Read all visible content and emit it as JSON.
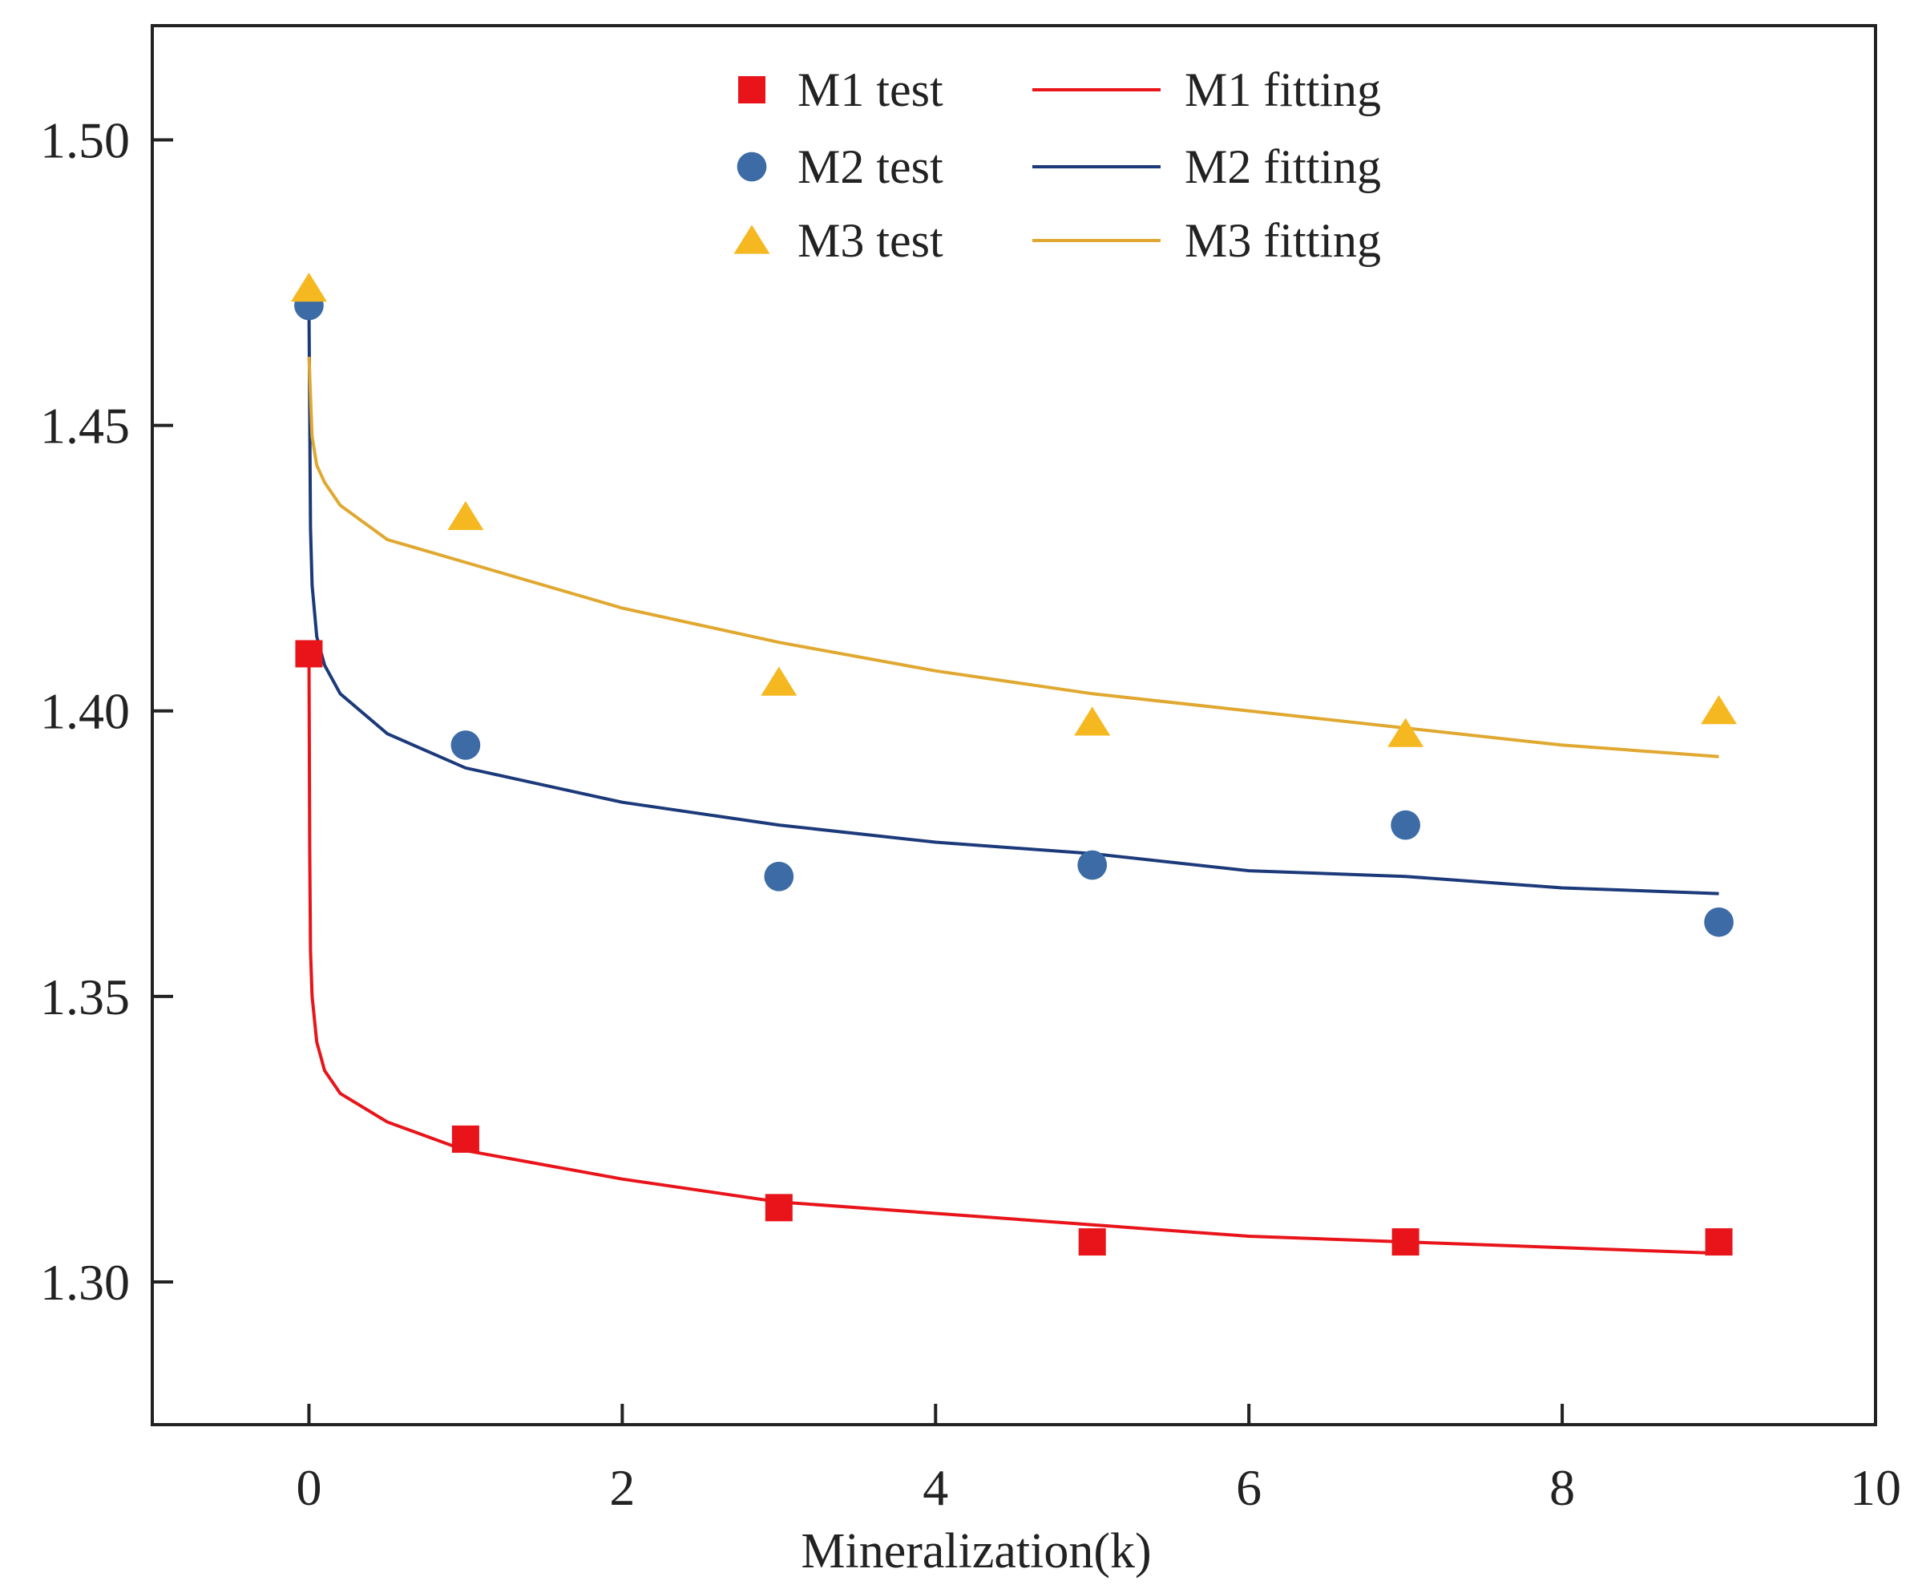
{
  "chart_data": {
    "type": "scatter",
    "title": "",
    "xlabel": "Mineralization(k)",
    "ylabel": "",
    "xlim": [
      -1,
      10
    ],
    "ylim": [
      1.275,
      1.52
    ],
    "xticks": [
      0,
      2,
      4,
      6,
      8,
      10
    ],
    "xtick_labels": [
      "0",
      "2",
      "4",
      "6",
      "8",
      "10"
    ],
    "yticks": [
      1.3,
      1.35,
      1.4,
      1.45,
      1.5
    ],
    "ytick_labels": [
      "1.30",
      "1.35",
      "1.40",
      "1.45",
      "1.50"
    ],
    "grid": false,
    "legend_position": "top-center",
    "series": [
      {
        "name": "M1 test",
        "kind": "scatter",
        "marker": "square",
        "color": "#e8141a",
        "x": [
          0,
          1,
          3,
          5,
          7,
          9
        ],
        "y": [
          1.41,
          1.325,
          1.313,
          1.307,
          1.307,
          1.307
        ]
      },
      {
        "name": "M2 test",
        "kind": "scatter",
        "marker": "circle",
        "color": "#3c6ba5",
        "x": [
          0,
          1,
          3,
          5,
          7,
          9
        ],
        "y": [
          1.471,
          1.394,
          1.371,
          1.373,
          1.38,
          1.363
        ]
      },
      {
        "name": "M3 test",
        "kind": "scatter",
        "marker": "triangle",
        "color": "#f5b820",
        "x": [
          0,
          1,
          3,
          5,
          7,
          9
        ],
        "y": [
          1.474,
          1.434,
          1.405,
          1.398,
          1.396,
          1.4
        ]
      },
      {
        "name": "M1 fitting",
        "kind": "line",
        "color": "#e8141a",
        "x": [
          0,
          0.005,
          0.01,
          0.02,
          0.05,
          0.1,
          0.2,
          0.5,
          1,
          2,
          3,
          4,
          5,
          6,
          7,
          8,
          9
        ],
        "y": [
          1.41,
          1.376,
          1.358,
          1.35,
          1.342,
          1.337,
          1.333,
          1.328,
          1.323,
          1.318,
          1.314,
          1.312,
          1.31,
          1.308,
          1.307,
          1.306,
          1.305
        ]
      },
      {
        "name": "M2 fitting",
        "kind": "line",
        "color": "#1c3a7a",
        "x": [
          0,
          0.005,
          0.01,
          0.02,
          0.05,
          0.1,
          0.2,
          0.5,
          1,
          2,
          3,
          4,
          5,
          6,
          7,
          8,
          9
        ],
        "y": [
          1.471,
          1.452,
          1.432,
          1.422,
          1.413,
          1.408,
          1.403,
          1.396,
          1.39,
          1.384,
          1.38,
          1.377,
          1.375,
          1.372,
          1.371,
          1.369,
          1.368
        ]
      },
      {
        "name": "M3 fitting",
        "kind": "line",
        "color": "#e0a830",
        "x": [
          0,
          0.02,
          0.05,
          0.1,
          0.2,
          0.5,
          1,
          2,
          3,
          4,
          5,
          6,
          7,
          8,
          9
        ],
        "y": [
          1.462,
          1.448,
          1.443,
          1.44,
          1.436,
          1.43,
          1.426,
          1.418,
          1.412,
          1.407,
          1.403,
          1.4,
          1.397,
          1.394,
          1.392
        ]
      }
    ]
  }
}
